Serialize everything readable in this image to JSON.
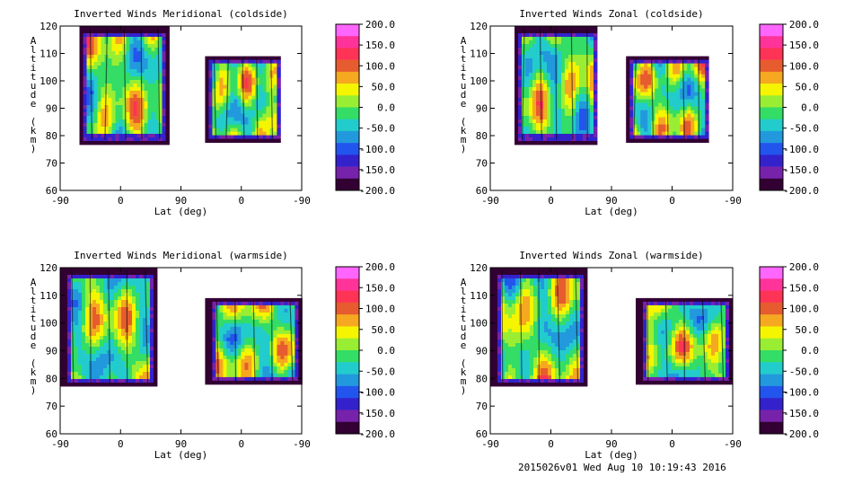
{
  "colorbar": {
    "labels": [
      "200.0",
      "150.0",
      "100.0",
      "50.0",
      "0.0",
      "-50.0",
      "-100.0",
      "-150.0",
      "-200.0"
    ],
    "colors": [
      "#ff66ff",
      "#ff3399",
      "#ff3355",
      "#e65c2e",
      "#f5a820",
      "#f5f500",
      "#99ee33",
      "#33dd66",
      "#22cccc",
      "#2299dd",
      "#2255ee",
      "#3322cc",
      "#7722aa",
      "#330033"
    ]
  },
  "footer": {
    "stamp": "2015026v01 Wed Aug 10 10:19:43 2016"
  },
  "chart_data": [
    {
      "type": "heatmap",
      "title": "Inverted Winds Meridional (coldside)",
      "xlabel": "Lat (deg)",
      "ylabel": "Altitude (km)",
      "xticks": [
        "-90",
        "0",
        "90",
        "0",
        "-90"
      ],
      "yticks": [
        "120",
        "110",
        "100",
        "90",
        "80",
        "70",
        "60"
      ],
      "ylim": [
        60,
        120
      ],
      "colorbar_range": [
        -200,
        200
      ],
      "panel": "top-left"
    },
    {
      "type": "heatmap",
      "title": "Inverted Winds Zonal (coldside)",
      "xlabel": "Lat (deg)",
      "ylabel": "Altitude (km)",
      "xticks": [
        "-90",
        "0",
        "90",
        "0",
        "-90"
      ],
      "yticks": [
        "120",
        "110",
        "100",
        "90",
        "80",
        "70",
        "60"
      ],
      "ylim": [
        60,
        120
      ],
      "colorbar_range": [
        -200,
        200
      ],
      "panel": "top-right"
    },
    {
      "type": "heatmap",
      "title": "Inverted Winds Meridional (warmside)",
      "xlabel": "Lat (deg)",
      "ylabel": "Altitude (km)",
      "xticks": [
        "-90",
        "0",
        "90",
        "0",
        "-90"
      ],
      "yticks": [
        "120",
        "110",
        "100",
        "90",
        "80",
        "70",
        "60"
      ],
      "ylim": [
        60,
        120
      ],
      "colorbar_range": [
        -200,
        200
      ],
      "panel": "bottom-left"
    },
    {
      "type": "heatmap",
      "title": "Inverted Winds Zonal (warmside)",
      "xlabel": "Lat (deg)",
      "ylabel": "Altitude (km)",
      "xticks": [
        "-90",
        "0",
        "90",
        "0",
        "-90"
      ],
      "yticks": [
        "120",
        "110",
        "100",
        "90",
        "80",
        "70",
        "60"
      ],
      "ylim": [
        60,
        120
      ],
      "colorbar_range": [
        -200,
        200
      ],
      "panel": "bottom-right"
    }
  ]
}
